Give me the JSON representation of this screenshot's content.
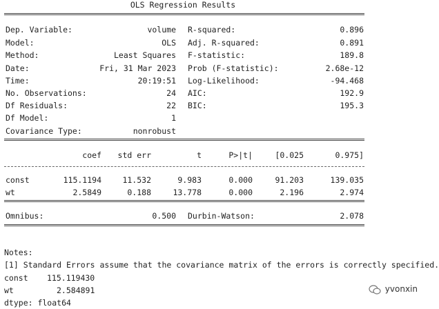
{
  "title": "OLS Regression Results",
  "summary": {
    "left": [
      {
        "label": "Dep. Variable:",
        "value": "volume"
      },
      {
        "label": "Model:",
        "value": "OLS"
      },
      {
        "label": "Method:",
        "value": "Least Squares"
      },
      {
        "label": "Date:",
        "value": "Fri, 31 Mar 2023"
      },
      {
        "label": "Time:",
        "value": "20:19:51"
      },
      {
        "label": "No. Observations:",
        "value": "24"
      },
      {
        "label": "Df Residuals:",
        "value": "22"
      },
      {
        "label": "Df Model:",
        "value": "1"
      },
      {
        "label": "Covariance Type:",
        "value": "nonrobust"
      }
    ],
    "right": [
      {
        "label": "R-squared:",
        "value": "0.896"
      },
      {
        "label": "Adj. R-squared:",
        "value": "0.891"
      },
      {
        "label": "F-statistic:",
        "value": "189.8"
      },
      {
        "label": "Prob (F-statistic):",
        "value": "2.68e-12"
      },
      {
        "label": "Log-Likelihood:",
        "value": "-94.468"
      },
      {
        "label": "AIC:",
        "value": "192.9"
      },
      {
        "label": "BIC:",
        "value": "195.3"
      }
    ]
  },
  "coef_table": {
    "headers": [
      "coef",
      "std err",
      "t",
      "P>|t|",
      "[0.025",
      "0.975]"
    ],
    "rows": [
      {
        "name": "const",
        "values": [
          "115.1194",
          "11.532",
          "9.983",
          "0.000",
          "91.203",
          "139.035"
        ]
      },
      {
        "name": "wt",
        "values": [
          "2.5849",
          "0.188",
          "13.778",
          "0.000",
          "2.196",
          "2.974"
        ]
      }
    ]
  },
  "diagnostics": {
    "omnibus_label": "Omnibus:",
    "omnibus_value": "0.500",
    "dw_label": "Durbin-Watson:",
    "dw_value": "2.078"
  },
  "notes": {
    "header": "Notes:",
    "line1": "[1] Standard Errors assume that the covariance matrix of the errors is correctly specified.",
    "params": [
      {
        "name": "const",
        "value": "115.119430"
      },
      {
        "name": "wt",
        "value": "2.584891"
      }
    ],
    "dtype": "dtype: float64"
  },
  "watermark": {
    "text": "yvonxin",
    "icon": "wechat-icon"
  }
}
